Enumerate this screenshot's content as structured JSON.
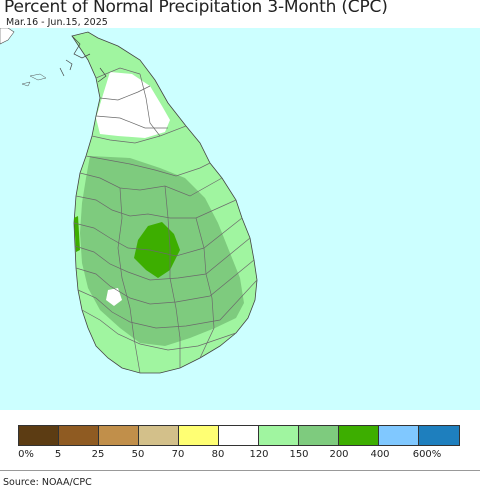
{
  "title": "Percent of Normal Precipitation 3-Month (CPC)",
  "subtitle": "Mar.16 - Jun.15, 2025",
  "map": {
    "region": "Sri Lanka",
    "colors": {
      "ocean": "#ccffff",
      "land_gt120": "#a0f5a0",
      "land_120_150": "#7ecb7e",
      "land_150_200": "#3dae00",
      "land_80_120": "#ffffff",
      "border": "#6b6b6b"
    }
  },
  "legend": {
    "colors": [
      "#5c3c13",
      "#8f5b22",
      "#c18f4a",
      "#d3c08a",
      "#ffff73",
      "#ffffff",
      "#a0f5a0",
      "#7ecb7e",
      "#3dae00",
      "#80c8ff",
      "#1e7fbe"
    ],
    "labels": [
      "0%",
      "5",
      "25",
      "50",
      "70",
      "80",
      "120",
      "150",
      "200",
      "400",
      "600%"
    ]
  },
  "source": "Source: NOAA/CPC"
}
